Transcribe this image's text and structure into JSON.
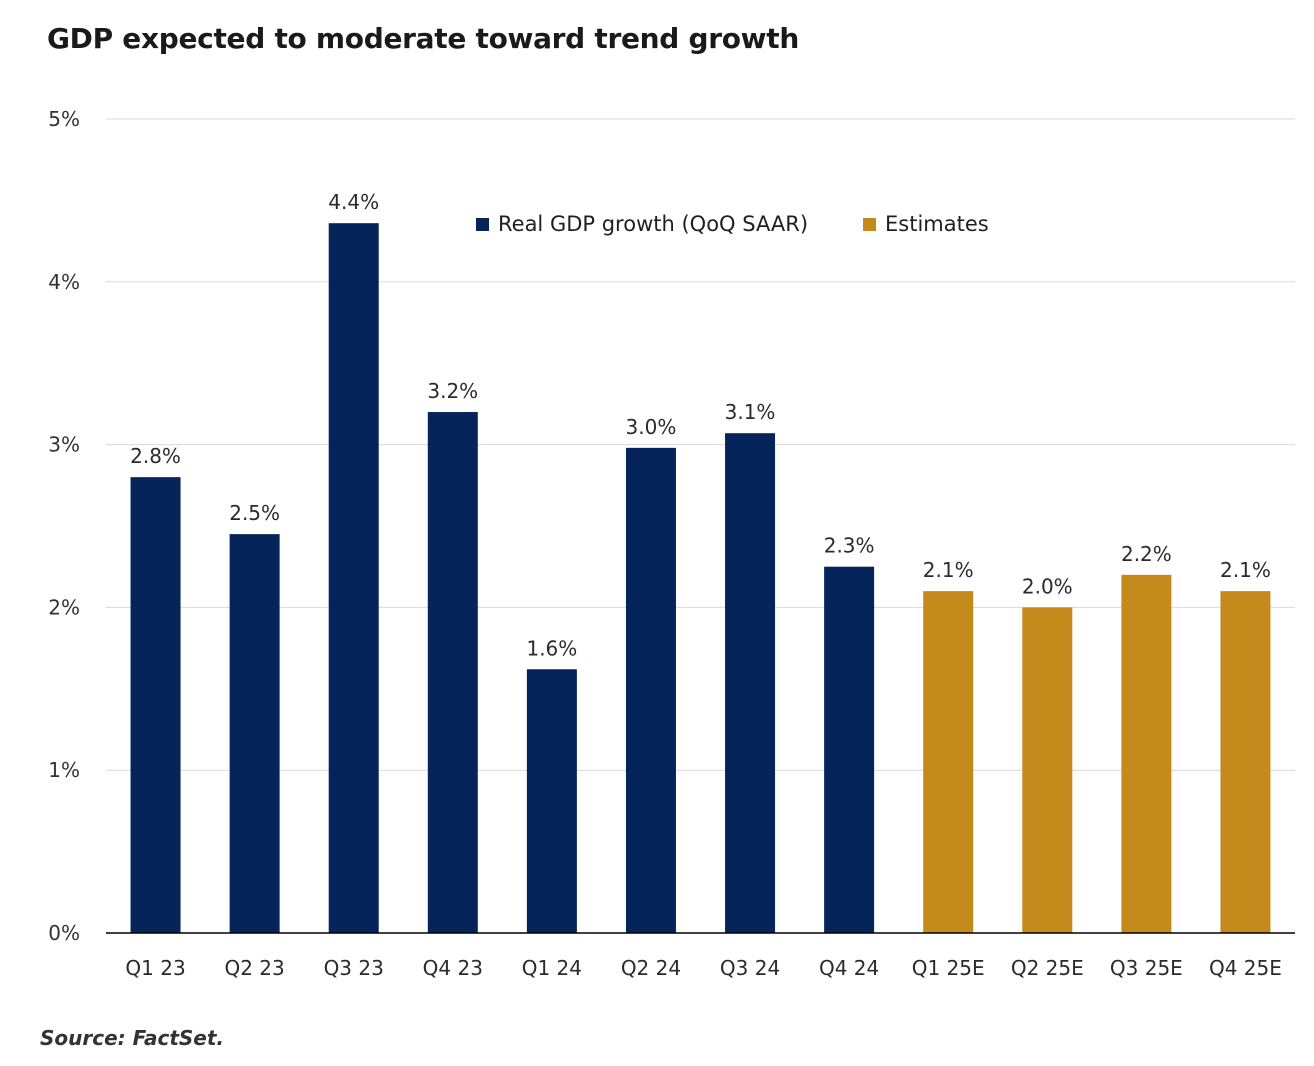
{
  "title": "GDP expected to moderate toward trend growth",
  "source": "Source: FactSet.",
  "colors": {
    "actual": "#04245a",
    "estimate": "#c48b1c",
    "grid": "#d9d9d9",
    "axis": "#000000"
  },
  "legend": [
    {
      "label": "Real GDP growth (QoQ SAAR)",
      "color": "#04245a"
    },
    {
      "label": "Estimates",
      "color": "#c48b1c"
    }
  ],
  "chart_data": {
    "type": "bar",
    "title": "GDP expected to moderate toward trend growth",
    "xlabel": "",
    "ylabel": "",
    "ylim": [
      0,
      5
    ],
    "yticks": [
      0,
      1,
      2,
      3,
      4,
      5
    ],
    "ytick_labels": [
      "0%",
      "1%",
      "2%",
      "3%",
      "4%",
      "5%"
    ],
    "grid": true,
    "legend_position": "top",
    "categories": [
      "Q1 23",
      "Q2 23",
      "Q3 23",
      "Q4 23",
      "Q1 24",
      "Q2 24",
      "Q3 24",
      "Q4 24",
      "Q1 25E",
      "Q2 25E",
      "Q3 25E",
      "Q4 25E"
    ],
    "values": [
      2.8,
      2.45,
      4.36,
      3.2,
      1.62,
      2.98,
      3.07,
      2.25,
      2.1,
      2.0,
      2.2,
      2.1
    ],
    "labels": [
      "2.8%",
      "2.5%",
      "4.4%",
      "3.2%",
      "1.6%",
      "3.0%",
      "3.1%",
      "2.3%",
      "2.1%",
      "2.0%",
      "2.2%",
      "2.1%"
    ],
    "series_type": [
      "actual",
      "actual",
      "actual",
      "actual",
      "actual",
      "actual",
      "actual",
      "actual",
      "estimate",
      "estimate",
      "estimate",
      "estimate"
    ],
    "series": [
      {
        "name": "Real GDP growth (QoQ SAAR)",
        "values": [
          2.8,
          2.45,
          4.36,
          3.2,
          1.62,
          2.98,
          3.07,
          2.25,
          null,
          null,
          null,
          null
        ]
      },
      {
        "name": "Estimates",
        "values": [
          null,
          null,
          null,
          null,
          null,
          null,
          null,
          null,
          2.1,
          2.0,
          2.2,
          2.1
        ]
      }
    ]
  }
}
